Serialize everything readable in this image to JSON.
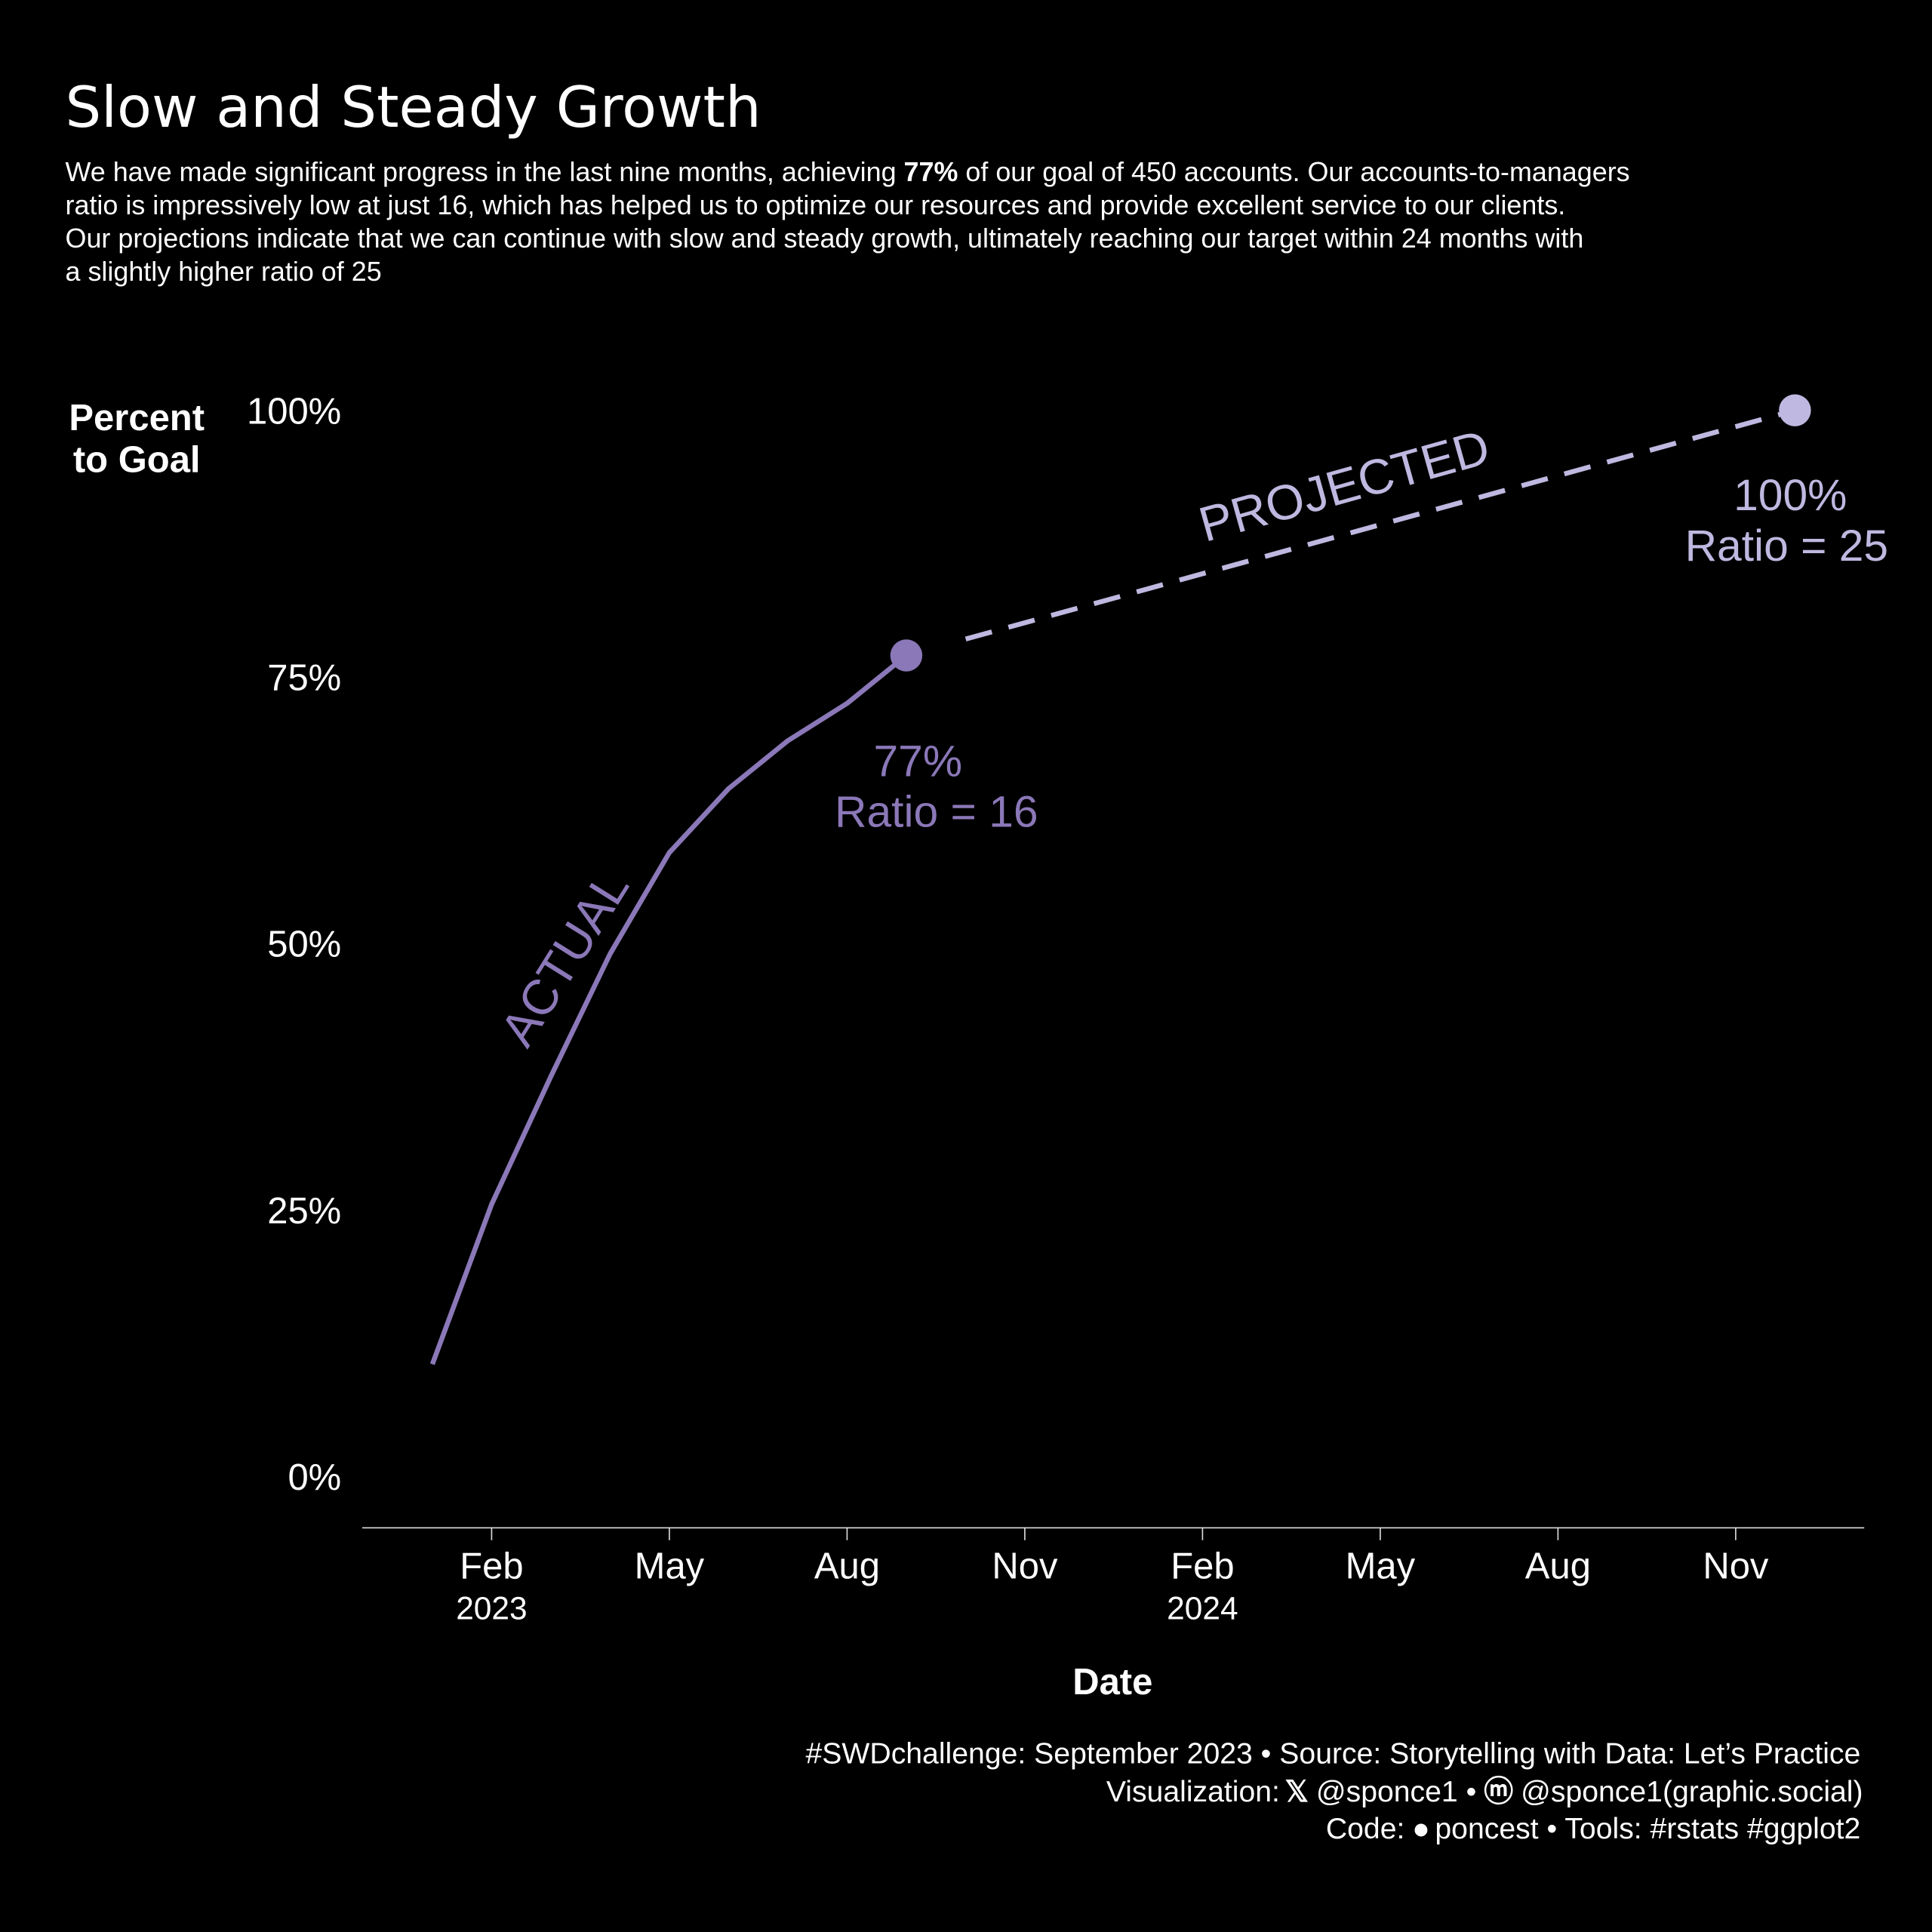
{
  "title": "Slow and Steady Growth",
  "subtitle": {
    "line1_a": "We have made significant progress in the last nine months, achieving ",
    "line1_bold": "77%",
    "line1_b": " of our goal of 450 accounts. Our accounts-to-managers",
    "line2": "ratio is impressively low at just 16, which has helped us to optimize our resources and provide excellent service to our clients.",
    "line3": "Our projections indicate that we can continue with slow and steady growth, ultimately reaching our target within 24 months with",
    "line4": "a slightly higher ratio of 25"
  },
  "colors": {
    "background": "#000000",
    "actual": "#8b78b8",
    "projected": "#bfb8e0",
    "text": "#ffffff"
  },
  "chart_data": {
    "type": "line",
    "xlabel": "Date",
    "ylabel_line1": "Percent",
    "ylabel_line2": "to Goal",
    "ylim": [
      0,
      100
    ],
    "y_ticks": [
      0,
      25,
      50,
      75,
      100
    ],
    "y_tick_labels": [
      "0%",
      "25%",
      "50%",
      "75%",
      "100%"
    ],
    "x_ticks": [
      {
        "date": "2023-02",
        "label": "Feb",
        "year": "2023"
      },
      {
        "date": "2023-05",
        "label": "May",
        "year": ""
      },
      {
        "date": "2023-08",
        "label": "Aug",
        "year": ""
      },
      {
        "date": "2023-11",
        "label": "Nov",
        "year": ""
      },
      {
        "date": "2024-02",
        "label": "Feb",
        "year": "2024"
      },
      {
        "date": "2024-05",
        "label": "May",
        "year": ""
      },
      {
        "date": "2024-08",
        "label": "Aug",
        "year": ""
      },
      {
        "date": "2024-11",
        "label": "Nov",
        "year": ""
      }
    ],
    "grid": false,
    "series": [
      {
        "name": "ACTUAL",
        "style": "solid",
        "x": [
          "2023-01",
          "2023-02",
          "2023-03",
          "2023-04",
          "2023-05",
          "2023-06",
          "2023-07",
          "2023-08",
          "2023-09"
        ],
        "y": [
          10.5,
          25.5,
          37.5,
          49,
          58.5,
          64.5,
          69,
          72.5,
          77
        ]
      },
      {
        "name": "PROJECTED",
        "style": "dashed",
        "x": [
          "2023-09",
          "2024-12"
        ],
        "y": [
          77,
          100
        ]
      }
    ],
    "annotations": [
      {
        "line1": "77%",
        "line2": "Ratio = 16",
        "series": "ACTUAL"
      },
      {
        "line1": "100%",
        "line2": "Ratio = 25",
        "series": "PROJECTED"
      }
    ]
  },
  "caption": {
    "line1": "#SWDchallenge: September 2023 • Source: Storytelling with Data: Let’s Practice",
    "line2_a": "Visualization:",
    "line2_b": "@sponce1 •",
    "line2_c": "@sponce1(graphic.social)",
    "line3_a": "Code:",
    "line3_b": "poncest • Tools: #rstats #ggplot2",
    "icons": [
      "x-twitter-icon",
      "mastodon-icon",
      "github-icon"
    ]
  }
}
